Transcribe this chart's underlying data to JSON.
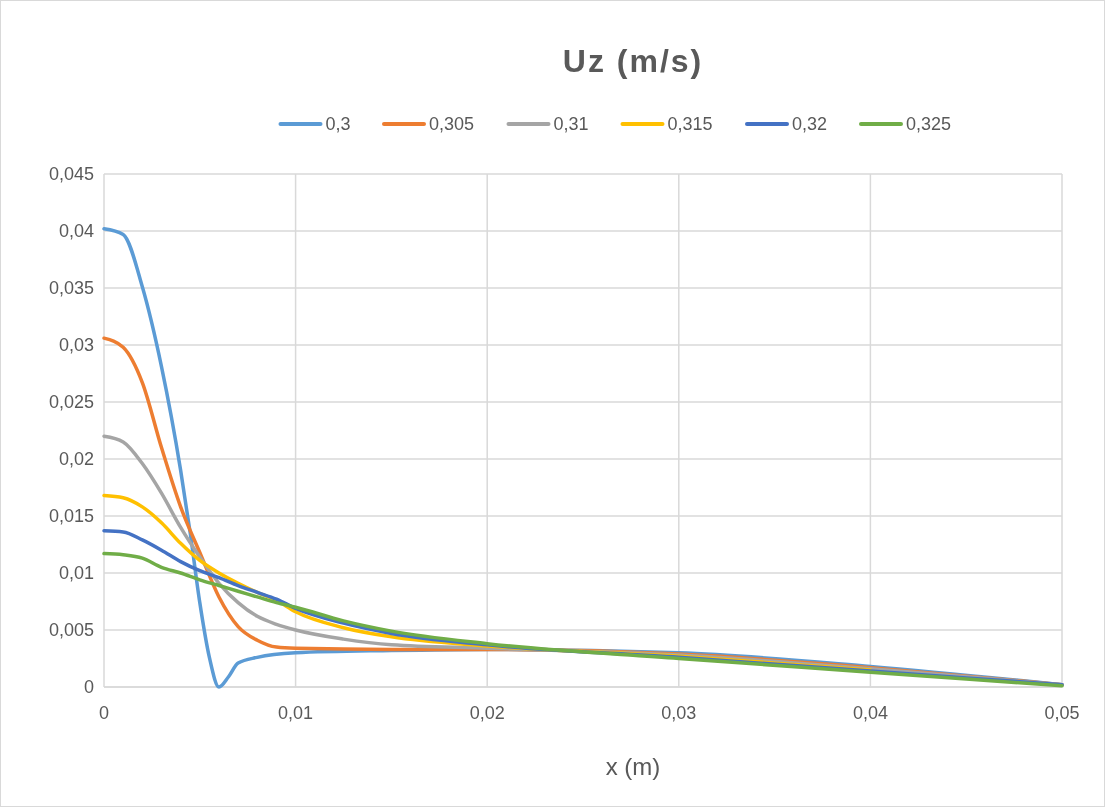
{
  "chart_data": {
    "type": "line",
    "title": "Uz (m/s)",
    "xlabel": "x (m)",
    "legend": "top",
    "grid": true,
    "marker": "none",
    "line_style": "solid",
    "xlim": [
      0,
      0.05
    ],
    "xticks": [
      0,
      {
        "value": 0.01,
        "label": "0,01"
      },
      {
        "value": 0.02,
        "label": "0,02"
      },
      {
        "value": 0.03,
        "label": "0,03"
      },
      {
        "value": 0.04,
        "label": "0,04"
      },
      {
        "value": 0.05,
        "label": "0,05"
      }
    ],
    "ylim": [
      0,
      0.045
    ],
    "yticks": [
      0,
      {
        "value": 0.005,
        "label": "0,005"
      },
      {
        "value": 0.01,
        "label": "0,01"
      },
      {
        "value": 0.015,
        "label": "0,015"
      },
      {
        "value": 0.02,
        "label": "0,02"
      },
      {
        "value": 0.025,
        "label": "0,025"
      },
      {
        "value": 0.03,
        "label": "0,03"
      },
      {
        "value": 0.035,
        "label": "0,035"
      },
      {
        "value": 0.04,
        "label": "0,04"
      },
      {
        "value": 0.045,
        "label": "0,045"
      }
    ],
    "series": [
      {
        "name": "0,3",
        "color": "#5b9bd5",
        "x": [
          0,
          0.001,
          0.002,
          0.003,
          0.004,
          0.0045,
          0.005,
          0.0055,
          0.006,
          0.0065,
          0.007,
          0.008,
          0.01,
          0.015,
          0.02,
          0.03,
          0.04,
          0.05
        ],
        "values": [
          0.0402,
          0.0397,
          0.0351,
          0.0281,
          0.019,
          0.0135,
          0.0074,
          0.0026,
          0,
          0.0009,
          0.0021,
          0.0026,
          0.003,
          0.0032,
          0.0033,
          0.003,
          0.0018,
          0.0002
        ]
      },
      {
        "name": "0,305",
        "color": "#ed7d31",
        "x": [
          0,
          0.001,
          0.002,
          0.003,
          0.004,
          0.005,
          0.006,
          0.007,
          0.008,
          0.009,
          0.01,
          0.015,
          0.02,
          0.03,
          0.04,
          0.05
        ],
        "values": [
          0.0306,
          0.0298,
          0.0267,
          0.021,
          0.0158,
          0.0118,
          0.0079,
          0.0053,
          0.0041,
          0.0035,
          0.0034,
          0.0033,
          0.0033,
          0.0029,
          0.0017,
          0.0002
        ]
      },
      {
        "name": "0,31",
        "color": "#a5a5a5",
        "x": [
          0,
          0.001,
          0.002,
          0.003,
          0.004,
          0.005,
          0.006,
          0.007,
          0.008,
          0.009,
          0.01,
          0.0125,
          0.015,
          0.02,
          0.03,
          0.04,
          0.05
        ],
        "values": [
          0.022,
          0.0215,
          0.0196,
          0.017,
          0.014,
          0.0114,
          0.0091,
          0.0074,
          0.0062,
          0.0055,
          0.005,
          0.0042,
          0.0037,
          0.0034,
          0.0028,
          0.0016,
          0.0002
        ]
      },
      {
        "name": "0,315",
        "color": "#ffc000",
        "x": [
          0,
          0.001,
          0.002,
          0.003,
          0.004,
          0.005,
          0.006,
          0.007,
          0.008,
          0.009,
          0.01,
          0.0125,
          0.015,
          0.02,
          0.03,
          0.04
        ],
        "values": [
          0.0168,
          0.0166,
          0.0158,
          0.0144,
          0.0126,
          0.0111,
          0.01,
          0.0091,
          0.0083,
          0.0076,
          0.0066,
          0.0052,
          0.0044,
          0.0036,
          0.0027,
          0.0015
        ]
      },
      {
        "name": "0,32",
        "color": "#4472c4",
        "x": [
          0,
          0.001,
          0.002,
          0.003,
          0.004,
          0.005,
          0.006,
          0.007,
          0.008,
          0.009,
          0.01,
          0.0125,
          0.015,
          0.02,
          0.03,
          0.04,
          0.05
        ],
        "values": [
          0.0137,
          0.0136,
          0.0129,
          0.012,
          0.011,
          0.0102,
          0.0096,
          0.0089,
          0.0083,
          0.0077,
          0.0069,
          0.0056,
          0.0047,
          0.0037,
          0.0026,
          0.0014,
          0.0002
        ]
      },
      {
        "name": "0,325",
        "color": "#70ad47",
        "x": [
          0,
          0.001,
          0.002,
          0.003,
          0.004,
          0.005,
          0.006,
          0.007,
          0.008,
          0.009,
          0.01,
          0.0125,
          0.015,
          0.02,
          0.03,
          0.04,
          0.05
        ],
        "values": [
          0.0117,
          0.0116,
          0.0113,
          0.0105,
          0.01,
          0.0094,
          0.0089,
          0.0084,
          0.0079,
          0.0074,
          0.007,
          0.0058,
          0.0049,
          0.0038,
          0.0025,
          0.0013,
          0.0001
        ]
      }
    ]
  }
}
